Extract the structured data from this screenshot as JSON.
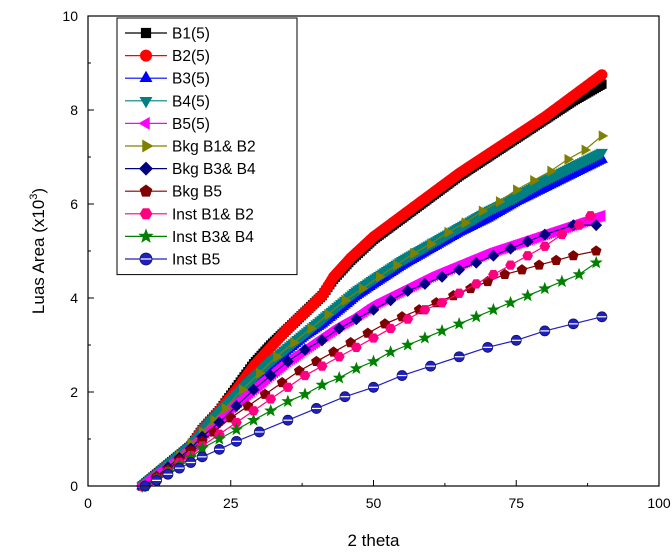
{
  "chart_data": {
    "type": "line",
    "xlabel": "2  theta",
    "ylabel": "Luas Area (x10",
    "ylabel_superscript": "3",
    "ylabel_close": ")",
    "xlim": [
      0,
      100
    ],
    "ylim": [
      0,
      10
    ],
    "xticks": [
      0,
      25,
      50,
      75,
      100
    ],
    "yticks": [
      0,
      2,
      4,
      6,
      8,
      10
    ],
    "grid": false,
    "legend_position": "top-left",
    "series": [
      {
        "name": "B1(5)",
        "marker": "square",
        "color": "#000000",
        "dense": true,
        "x": [
          9.5,
          12,
          15,
          18,
          20,
          23,
          26,
          29,
          32,
          35,
          38,
          41,
          43,
          46,
          50,
          55,
          60,
          65,
          70,
          75,
          80,
          85,
          90
        ],
        "y": [
          0.0,
          0.25,
          0.55,
          0.85,
          1.2,
          1.6,
          2.1,
          2.6,
          3.0,
          3.35,
          3.7,
          4.05,
          4.4,
          4.8,
          5.25,
          5.7,
          6.15,
          6.6,
          7.0,
          7.4,
          7.8,
          8.2,
          8.55
        ]
      },
      {
        "name": "B2(5)",
        "marker": "circle",
        "color": "#ff0000",
        "dense": true,
        "x": [
          9.5,
          12,
          15,
          18,
          20,
          23,
          26,
          29,
          32,
          35,
          38,
          41,
          43,
          46,
          50,
          55,
          60,
          65,
          70,
          75,
          80,
          85,
          90
        ],
        "y": [
          0.0,
          0.25,
          0.55,
          0.85,
          1.2,
          1.6,
          2.05,
          2.55,
          2.95,
          3.35,
          3.7,
          4.05,
          4.45,
          4.85,
          5.3,
          5.75,
          6.2,
          6.65,
          7.05,
          7.45,
          7.85,
          8.3,
          8.75
        ]
      },
      {
        "name": "B3(5)",
        "marker": "triangle-up",
        "color": "#0000ff",
        "dense": true,
        "x": [
          9.5,
          12,
          15,
          18,
          20,
          23,
          26,
          29,
          32,
          35,
          38,
          41,
          44,
          47,
          50,
          55,
          60,
          65,
          70,
          75,
          80,
          85,
          90
        ],
        "y": [
          0.0,
          0.25,
          0.55,
          0.85,
          1.15,
          1.5,
          1.9,
          2.25,
          2.6,
          2.9,
          3.2,
          3.45,
          3.75,
          4.05,
          4.3,
          4.7,
          5.05,
          5.4,
          5.7,
          6.05,
          6.35,
          6.65,
          6.95
        ]
      },
      {
        "name": "B4(5)",
        "marker": "triangle-down",
        "color": "#008080",
        "dense": true,
        "x": [
          9.5,
          12,
          15,
          18,
          20,
          23,
          26,
          29,
          32,
          35,
          38,
          41,
          44,
          47,
          50,
          55,
          60,
          65,
          70,
          75,
          80,
          85,
          90
        ],
        "y": [
          0.0,
          0.25,
          0.55,
          0.85,
          1.15,
          1.55,
          1.95,
          2.3,
          2.65,
          2.95,
          3.25,
          3.55,
          3.85,
          4.15,
          4.4,
          4.8,
          5.15,
          5.5,
          5.85,
          6.15,
          6.5,
          6.8,
          7.1
        ]
      },
      {
        "name": "B5(5)",
        "marker": "triangle-left",
        "color": "#ff00ff",
        "dense": true,
        "x": [
          9.5,
          12,
          15,
          18,
          20,
          23,
          26,
          29,
          32,
          35,
          38,
          41,
          44,
          47,
          50,
          55,
          60,
          65,
          70,
          75,
          80,
          85,
          90
        ],
        "y": [
          0.0,
          0.25,
          0.5,
          0.8,
          1.05,
          1.4,
          1.75,
          2.05,
          2.35,
          2.65,
          2.9,
          3.15,
          3.4,
          3.6,
          3.85,
          4.15,
          4.45,
          4.7,
          4.95,
          5.15,
          5.35,
          5.55,
          5.75
        ]
      },
      {
        "name": "Bkg B1& B2",
        "marker": "triangle-right",
        "color": "#808000",
        "dense": false,
        "x": [
          10,
          12,
          14,
          16,
          18,
          20,
          22,
          24,
          27,
          30,
          33,
          36,
          39,
          42,
          45,
          48,
          51,
          54,
          57,
          60,
          63,
          66,
          69,
          72,
          75,
          78,
          81,
          84,
          87,
          90
        ],
        "y": [
          0.0,
          0.2,
          0.4,
          0.65,
          0.9,
          1.15,
          1.4,
          1.65,
          2.05,
          2.4,
          2.75,
          3.05,
          3.35,
          3.65,
          3.95,
          4.2,
          4.45,
          4.7,
          4.95,
          5.15,
          5.4,
          5.6,
          5.85,
          6.05,
          6.3,
          6.5,
          6.7,
          6.95,
          7.15,
          7.45
        ]
      },
      {
        "name": "Bkg B3& B4",
        "marker": "diamond",
        "color": "#000080",
        "dense": false,
        "x": [
          10,
          12,
          14,
          16,
          18,
          20,
          23,
          26,
          29,
          32,
          35,
          38,
          41,
          44,
          47,
          50,
          53,
          56,
          59,
          62,
          65,
          68,
          71,
          74,
          77,
          80,
          85,
          89
        ],
        "y": [
          0.0,
          0.2,
          0.4,
          0.6,
          0.8,
          1.05,
          1.35,
          1.7,
          2.05,
          2.35,
          2.65,
          2.9,
          3.1,
          3.35,
          3.55,
          3.75,
          3.95,
          4.15,
          4.3,
          4.45,
          4.6,
          4.75,
          4.9,
          5.05,
          5.2,
          5.35,
          5.55,
          5.55
        ]
      },
      {
        "name": "Bkg B5",
        "marker": "pentagon",
        "color": "#800000",
        "dense": false,
        "x": [
          10,
          12,
          14,
          16,
          18,
          20,
          22,
          25,
          28,
          31,
          34,
          37,
          40,
          43,
          46,
          49,
          52,
          55,
          58,
          61,
          64,
          67,
          70,
          73,
          76,
          79,
          82,
          85,
          89
        ],
        "y": [
          0.0,
          0.2,
          0.35,
          0.55,
          0.75,
          0.95,
          1.15,
          1.45,
          1.7,
          1.95,
          2.2,
          2.45,
          2.65,
          2.85,
          3.05,
          3.25,
          3.45,
          3.6,
          3.75,
          3.9,
          4.05,
          4.2,
          4.35,
          4.5,
          4.6,
          4.7,
          4.8,
          4.9,
          5.0
        ]
      },
      {
        "name": "Inst B1& B2",
        "marker": "hexagon",
        "color": "#ff0080",
        "dense": false,
        "x": [
          10,
          12,
          14,
          16,
          18,
          20,
          23,
          26,
          29,
          32,
          35,
          38,
          41,
          44,
          47,
          50,
          53,
          56,
          59,
          62,
          65,
          68,
          71,
          74,
          77,
          80,
          83,
          86,
          88
        ],
        "y": [
          0.0,
          0.15,
          0.3,
          0.5,
          0.65,
          0.85,
          1.1,
          1.35,
          1.6,
          1.85,
          2.1,
          2.35,
          2.55,
          2.75,
          2.95,
          3.15,
          3.35,
          3.55,
          3.75,
          3.9,
          4.1,
          4.3,
          4.5,
          4.7,
          4.9,
          5.1,
          5.35,
          5.55,
          5.75
        ]
      },
      {
        "name": "Inst B3& B4",
        "marker": "star",
        "color": "#008000",
        "dense": false,
        "x": [
          10,
          12,
          14,
          16,
          18,
          20,
          23,
          26,
          29,
          32,
          35,
          38,
          41,
          44,
          47,
          50,
          53,
          56,
          59,
          62,
          65,
          68,
          71,
          74,
          77,
          80,
          83,
          86,
          89
        ],
        "y": [
          0.0,
          0.15,
          0.3,
          0.45,
          0.6,
          0.8,
          1.0,
          1.2,
          1.4,
          1.6,
          1.8,
          1.95,
          2.15,
          2.3,
          2.5,
          2.65,
          2.85,
          3.0,
          3.15,
          3.3,
          3.45,
          3.6,
          3.75,
          3.9,
          4.05,
          4.2,
          4.35,
          4.5,
          4.75
        ]
      },
      {
        "name": "Inst B5",
        "marker": "circle-striped",
        "color": "#2020c0",
        "dense": false,
        "x": [
          10,
          12,
          14,
          16,
          18,
          20,
          23,
          26,
          30,
          35,
          40,
          45,
          50,
          55,
          60,
          65,
          70,
          75,
          80,
          85,
          90
        ],
        "y": [
          0.0,
          0.12,
          0.25,
          0.38,
          0.5,
          0.62,
          0.78,
          0.95,
          1.15,
          1.4,
          1.65,
          1.9,
          2.1,
          2.35,
          2.55,
          2.75,
          2.95,
          3.1,
          3.3,
          3.45,
          3.6
        ]
      }
    ]
  }
}
